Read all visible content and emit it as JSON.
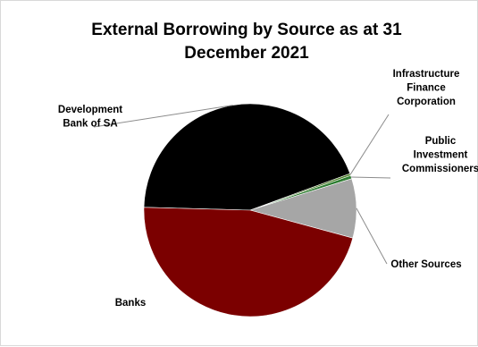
{
  "chart_data": {
    "type": "pie",
    "title_lines": [
      "External Borrowing by Source as at 31",
      "December 2021"
    ],
    "slices": [
      {
        "name_lines": [
          "Development",
          "Bank of SA"
        ],
        "value": 44.0,
        "color": "#000000"
      },
      {
        "name_lines": [
          "Infrastructure",
          "Finance",
          "Corporation"
        ],
        "value": 0.3,
        "color": "#4f7f2a"
      },
      {
        "name_lines": [
          "Public",
          "Investment",
          "Commissioners"
        ],
        "value": 0.5,
        "color": "#2e7d32"
      },
      {
        "name_lines": [
          "Other Sources"
        ],
        "value": 9.0,
        "color": "#a6a6a6"
      },
      {
        "name_lines": [
          "Banks"
        ],
        "value": 46.2,
        "color": "#7b0000"
      }
    ],
    "legend": "none"
  }
}
